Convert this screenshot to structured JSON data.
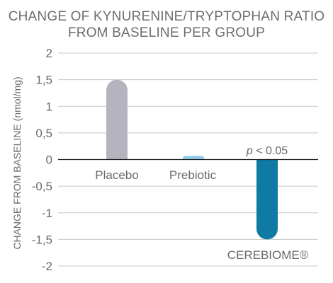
{
  "chart_data": {
    "type": "bar",
    "title_lines": [
      "CHANGE OF KYNURENINE/TRYPTOPHAN RATIO",
      "FROM BASELINE PER GROUP"
    ],
    "ylabel": "CHANGE FROM BASELINE (nmol/mg)",
    "ylim": [
      -2,
      2
    ],
    "yticks": [
      2,
      1.5,
      1,
      0.5,
      0,
      -0.5,
      -1,
      -1.5,
      -2
    ],
    "ytick_labels": [
      "2",
      "1,5",
      "1",
      "0,5",
      "0",
      "-0,5",
      "-1",
      "-1,5",
      "-2"
    ],
    "categories": [
      "Placebo",
      "Prebiotic",
      "CEREBIOME®"
    ],
    "values": [
      1.5,
      0.07,
      -1.5
    ],
    "colors": [
      "#b4b4be",
      "#92cbec",
      "#0f7aa3"
    ],
    "annotation": {
      "text_italic": "p",
      "text": " < 0.05",
      "category_index": 2
    },
    "grid": true,
    "gridline_color": "#c8c8c8",
    "zero_line_color": "#1a1a1a"
  }
}
